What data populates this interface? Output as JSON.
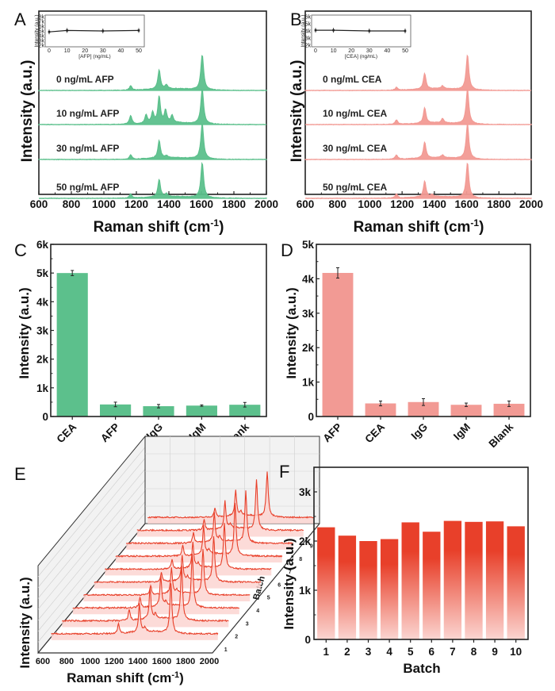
{
  "colors": {
    "green": "#5cc08c",
    "pink": "#f29a94",
    "red": "#e8402a",
    "red_light": "#fbd5d1",
    "axis": "#222222"
  },
  "chart_data": [
    {
      "id": "A",
      "panel_letter": "A",
      "type": "line",
      "title": "",
      "xlabel": "Raman shift (cm⁻¹)",
      "ylabel": "Intensity (a.u.)",
      "xlim": [
        600,
        2000
      ],
      "xticks": [
        "600",
        "800",
        "1000",
        "1200",
        "1400",
        "1600",
        "1800",
        "2000"
      ],
      "series": [
        {
          "name": "0 ng/mL AFP",
          "label": "0 ng/mL AFP",
          "peaks": [
            [
              1165,
              0.12
            ],
            [
              1340,
              0.55
            ],
            [
              1385,
              0.1
            ],
            [
              1605,
              1.0
            ]
          ]
        },
        {
          "name": "10 ng/mL AFP",
          "label": "10 ng/mL AFP",
          "peaks": [
            [
              1165,
              0.25
            ],
            [
              1260,
              0.25
            ],
            [
              1300,
              0.3
            ],
            [
              1340,
              0.75
            ],
            [
              1380,
              0.35
            ],
            [
              1420,
              0.2
            ],
            [
              1605,
              1.0
            ]
          ]
        },
        {
          "name": "30 ng/mL AFP",
          "label": "30 ng/mL AFP",
          "peaks": [
            [
              1165,
              0.12
            ],
            [
              1340,
              0.5
            ],
            [
              1385,
              0.06
            ],
            [
              1605,
              1.0
            ]
          ]
        },
        {
          "name": "50 ng/mL AFP",
          "label": "50 ng/mL AFP",
          "peaks": [
            [
              1165,
              0.12
            ],
            [
              1340,
              0.5
            ],
            [
              1385,
              0.08
            ],
            [
              1605,
              1.0
            ]
          ]
        }
      ],
      "inset": {
        "type": "line",
        "xlabel": "[AFP] (ng/mL)",
        "ylabel": "Intensity (a.u.)",
        "x": [
          0,
          10,
          30,
          50
        ],
        "y": [
          4800,
          5100,
          5000,
          5100
        ],
        "xlim": [
          0,
          50
        ],
        "ylim": [
          2000,
          8000
        ],
        "xticks": [
          "0",
          "10",
          "20",
          "30",
          "40",
          "50"
        ],
        "yticks": [
          "2k",
          "3k",
          "4k",
          "5k",
          "6k",
          "7k",
          "8k"
        ]
      }
    },
    {
      "id": "B",
      "panel_letter": "B",
      "type": "line",
      "title": "",
      "xlabel": "Raman shift (cm⁻¹)",
      "ylabel": "Intensity (a.u.)",
      "xlim": [
        600,
        2000
      ],
      "xticks": [
        "600",
        "800",
        "1000",
        "1200",
        "1400",
        "1600",
        "1800",
        "2000"
      ],
      "series": [
        {
          "name": "0 ng/mL CEA",
          "label": "0 ng/mL CEA",
          "peaks": [
            [
              1165,
              0.08
            ],
            [
              1340,
              0.45
            ],
            [
              1450,
              0.08
            ],
            [
              1605,
              1.0
            ]
          ]
        },
        {
          "name": "10 ng/mL CEA",
          "label": "10 ng/mL CEA",
          "peaks": [
            [
              1165,
              0.12
            ],
            [
              1340,
              0.45
            ],
            [
              1450,
              0.12
            ],
            [
              1605,
              1.0
            ]
          ]
        },
        {
          "name": "30 ng/mL CEA",
          "label": "30 ng/mL CEA",
          "peaks": [
            [
              1165,
              0.12
            ],
            [
              1340,
              0.45
            ],
            [
              1450,
              0.08
            ],
            [
              1605,
              1.0
            ]
          ]
        },
        {
          "name": "50 ng/mL CEA",
          "label": "50 ng/mL CEA",
          "peaks": [
            [
              1165,
              0.12
            ],
            [
              1340,
              0.45
            ],
            [
              1385,
              0.06
            ],
            [
              1605,
              1.0
            ]
          ]
        }
      ],
      "inset": {
        "type": "line",
        "xlabel": "[CEA] (ng/mL)",
        "ylabel": "Intensity (a.u.)",
        "x": [
          0,
          10,
          30,
          50
        ],
        "y": [
          4100,
          4100,
          4000,
          4000
        ],
        "xlim": [
          0,
          50
        ],
        "ylim": [
          2000,
          6000
        ],
        "xticks": [
          "0",
          "10",
          "20",
          "30",
          "40",
          "50"
        ],
        "yticks": [
          "2k",
          "3k",
          "4k",
          "5k",
          "6k"
        ]
      }
    },
    {
      "id": "C",
      "panel_letter": "C",
      "type": "bar",
      "title": "",
      "xlabel": "",
      "ylabel": "Intensity (a.u.)",
      "categories": [
        "CEA",
        "AFP",
        "IgG",
        "IgM",
        "Blank"
      ],
      "values": [
        5000,
        420,
        360,
        380,
        410
      ],
      "errors": [
        90,
        80,
        60,
        25,
        80
      ],
      "ylim": [
        0,
        6000
      ],
      "yticks": [
        "0",
        "1k",
        "2k",
        "3k",
        "4k",
        "5k",
        "6k"
      ]
    },
    {
      "id": "D",
      "panel_letter": "D",
      "type": "bar",
      "title": "",
      "xlabel": "",
      "ylabel": "Intensity (a.u.)",
      "categories": [
        "AFP",
        "CEA",
        "IgG",
        "IgM",
        "Blank"
      ],
      "values": [
        4170,
        380,
        420,
        340,
        370
      ],
      "errors": [
        150,
        70,
        100,
        50,
        80
      ],
      "ylim": [
        0,
        5000
      ],
      "yticks": [
        "0",
        "1k",
        "2k",
        "3k",
        "4k",
        "5k"
      ]
    },
    {
      "id": "E",
      "panel_letter": "E",
      "type": "line",
      "title": "",
      "xlabel": "Raman shift (cm⁻¹)",
      "ylabel": "Intensity (a.u.)",
      "zlabel": "Batch",
      "xlim": [
        600,
        2000
      ],
      "xticks": [
        "600",
        "800",
        "1000",
        "1200",
        "1400",
        "1600",
        "1800",
        "2000"
      ],
      "batches": [
        "1",
        "2",
        "3",
        "4",
        "5",
        "6",
        "7",
        "8",
        "9",
        "10"
      ],
      "peaks": [
        [
          1165,
          0.2
        ],
        [
          1340,
          0.55
        ],
        [
          1385,
          0.08
        ],
        [
          1605,
          1.0
        ]
      ]
    },
    {
      "id": "F",
      "panel_letter": "F",
      "type": "bar",
      "title": "",
      "xlabel": "Batch",
      "ylabel": "Intensity (a.u.)",
      "categories": [
        "1",
        "2",
        "3",
        "4",
        "5",
        "6",
        "7",
        "8",
        "9",
        "10"
      ],
      "values": [
        2280,
        2110,
        2000,
        2040,
        2380,
        2190,
        2410,
        2390,
        2400,
        2300
      ],
      "ylim": [
        0,
        3500
      ],
      "yticks": [
        "0",
        "1k",
        "2k",
        "3k"
      ],
      "ytick_values": [
        0,
        1000,
        2000,
        3000
      ]
    }
  ]
}
